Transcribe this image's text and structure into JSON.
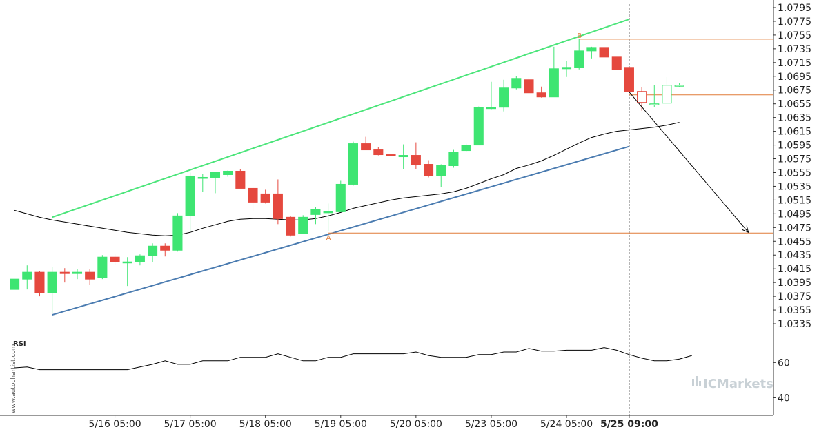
{
  "colors": {
    "up": "#3ee572",
    "down": "#e5483e",
    "upper_channel": "#4be57a",
    "lower_channel": "#4a7bb0",
    "ma": "#000000",
    "level": "#e07b39",
    "arrow": "#000000",
    "axis": "#333333",
    "grid_divider": "#cccccc",
    "brand": "#c9d1d6"
  },
  "chart_data": {
    "type": "candlestick",
    "y_axis": {
      "ticks": [
        "1.0795",
        "1.0775",
        "1.0755",
        "1.0735",
        "1.0715",
        "1.0695",
        "1.0675",
        "1.0655",
        "1.0635",
        "1.0615",
        "1.0595",
        "1.0575",
        "1.0555",
        "1.0535",
        "1.0515",
        "1.0495",
        "1.0475",
        "1.0455",
        "1.0435",
        "1.0415",
        "1.0395",
        "1.0375",
        "1.0355",
        "1.0335"
      ],
      "range": [
        1.0322,
        1.08
      ]
    },
    "x_axis": {
      "labels": [
        {
          "i": 8,
          "label": "5/16 05:00",
          "bold": false
        },
        {
          "i": 14,
          "label": "5/17 05:00",
          "bold": false
        },
        {
          "i": 20,
          "label": "5/18 05:00",
          "bold": false
        },
        {
          "i": 26,
          "label": "5/19 05:00",
          "bold": false
        },
        {
          "i": 32,
          "label": "5/20 05:00",
          "bold": false
        },
        {
          "i": 38,
          "label": "5/23 05:00",
          "bold": false
        },
        {
          "i": 44,
          "label": "5/24 05:00",
          "bold": false
        },
        {
          "i": 49,
          "label": "5/25 09:00",
          "bold": true
        }
      ],
      "range": [
        -0.5,
        60.5
      ]
    },
    "candles": [
      {
        "o": 1.0385,
        "h": 1.04,
        "l": 1.0385,
        "c": 1.04
      },
      {
        "o": 1.04,
        "h": 1.042,
        "l": 1.0385,
        "c": 1.041
      },
      {
        "o": 1.041,
        "h": 1.0412,
        "l": 1.0375,
        "c": 1.038
      },
      {
        "o": 1.038,
        "h": 1.0418,
        "l": 1.035,
        "c": 1.041
      },
      {
        "o": 1.041,
        "h": 1.0416,
        "l": 1.0395,
        "c": 1.0408
      },
      {
        "o": 1.0408,
        "h": 1.0415,
        "l": 1.04,
        "c": 1.041
      },
      {
        "o": 1.041,
        "h": 1.0415,
        "l": 1.0392,
        "c": 1.04
      },
      {
        "o": 1.0402,
        "h": 1.0435,
        "l": 1.04,
        "c": 1.0432
      },
      {
        "o": 1.0432,
        "h": 1.0436,
        "l": 1.042,
        "c": 1.0425
      },
      {
        "o": 1.0425,
        "h": 1.0432,
        "l": 1.039,
        "c": 1.0425
      },
      {
        "o": 1.0425,
        "h": 1.0436,
        "l": 1.042,
        "c": 1.0434
      },
      {
        "o": 1.0434,
        "h": 1.0452,
        "l": 1.0425,
        "c": 1.0448
      },
      {
        "o": 1.0448,
        "h": 1.0452,
        "l": 1.0433,
        "c": 1.0442
      },
      {
        "o": 1.0442,
        "h": 1.0496,
        "l": 1.044,
        "c": 1.0492
      },
      {
        "o": 1.0492,
        "h": 1.0555,
        "l": 1.047,
        "c": 1.055
      },
      {
        "o": 1.0548,
        "h": 1.0553,
        "l": 1.0527,
        "c": 1.0548
      },
      {
        "o": 1.0548,
        "h": 1.0556,
        "l": 1.0525,
        "c": 1.0555
      },
      {
        "o": 1.0552,
        "h": 1.0558,
        "l": 1.0549,
        "c": 1.0557
      },
      {
        "o": 1.0557,
        "h": 1.056,
        "l": 1.0532,
        "c": 1.0532
      },
      {
        "o": 1.0532,
        "h": 1.0535,
        "l": 1.0498,
        "c": 1.0512
      },
      {
        "o": 1.0524,
        "h": 1.053,
        "l": 1.051,
        "c": 1.0512
      },
      {
        "o": 1.0524,
        "h": 1.0545,
        "l": 1.048,
        "c": 1.0488
      },
      {
        "o": 1.049,
        "h": 1.0492,
        "l": 1.0462,
        "c": 1.0464
      },
      {
        "o": 1.0466,
        "h": 1.0493,
        "l": 1.0466,
        "c": 1.049
      },
      {
        "o": 1.0494,
        "h": 1.0505,
        "l": 1.048,
        "c": 1.0501
      },
      {
        "o": 1.0498,
        "h": 1.051,
        "l": 1.047,
        "c": 1.0498
      },
      {
        "o": 1.0498,
        "h": 1.0543,
        "l": 1.0498,
        "c": 1.0538
      },
      {
        "o": 1.0538,
        "h": 1.06,
        "l": 1.0536,
        "c": 1.0597
      },
      {
        "o": 1.0597,
        "h": 1.0607,
        "l": 1.0588,
        "c": 1.0588
      },
      {
        "o": 1.0588,
        "h": 1.0592,
        "l": 1.058,
        "c": 1.0581
      },
      {
        "o": 1.0581,
        "h": 1.0583,
        "l": 1.0556,
        "c": 1.058
      },
      {
        "o": 1.0578,
        "h": 1.0596,
        "l": 1.056,
        "c": 1.058
      },
      {
        "o": 1.058,
        "h": 1.0599,
        "l": 1.056,
        "c": 1.0567
      },
      {
        "o": 1.0567,
        "h": 1.0573,
        "l": 1.0548,
        "c": 1.055
      },
      {
        "o": 1.055,
        "h": 1.0567,
        "l": 1.0534,
        "c": 1.0565
      },
      {
        "o": 1.0565,
        "h": 1.0588,
        "l": 1.0562,
        "c": 1.0585
      },
      {
        "o": 1.0587,
        "h": 1.0597,
        "l": 1.0585,
        "c": 1.0595
      },
      {
        "o": 1.0595,
        "h": 1.0651,
        "l": 1.0595,
        "c": 1.065
      },
      {
        "o": 1.0648,
        "h": 1.0687,
        "l": 1.0647,
        "c": 1.065
      },
      {
        "o": 1.065,
        "h": 1.069,
        "l": 1.0644,
        "c": 1.0678
      },
      {
        "o": 1.0678,
        "h": 1.0695,
        "l": 1.0676,
        "c": 1.0692
      },
      {
        "o": 1.069,
        "h": 1.0694,
        "l": 1.067,
        "c": 1.0671
      },
      {
        "o": 1.0671,
        "h": 1.068,
        "l": 1.0664,
        "c": 1.0665
      },
      {
        "o": 1.0665,
        "h": 1.0738,
        "l": 1.0665,
        "c": 1.0706
      },
      {
        "o": 1.0706,
        "h": 1.0717,
        "l": 1.0694,
        "c": 1.0708
      },
      {
        "o": 1.0708,
        "h": 1.0749,
        "l": 1.0705,
        "c": 1.0732
      },
      {
        "o": 1.0732,
        "h": 1.0738,
        "l": 1.0721,
        "c": 1.0737
      },
      {
        "o": 1.0737,
        "h": 1.0737,
        "l": 1.0723,
        "c": 1.0723
      },
      {
        "o": 1.0723,
        "h": 1.0723,
        "l": 1.0705,
        "c": 1.0705
      },
      {
        "o": 1.0708,
        "h": 1.0708,
        "l": 1.0672,
        "c": 1.0673
      },
      {
        "o": 1.0673,
        "h": 1.0679,
        "l": 1.0645,
        "c": 1.0657
      },
      {
        "o": 1.0654,
        "h": 1.0682,
        "l": 1.065,
        "c": 1.0655
      },
      {
        "o": 1.0656,
        "h": 1.0694,
        "l": 1.0655,
        "c": 1.0682
      },
      {
        "o": 1.0682,
        "h": 1.0685,
        "l": 1.0679,
        "c": 1.0682
      }
    ],
    "hollow_from": 50,
    "moving_average": [
      [
        0,
        1.05
      ],
      [
        1,
        1.0495
      ],
      [
        2,
        1.049
      ],
      [
        3,
        1.0486
      ],
      [
        4,
        1.0483
      ],
      [
        5,
        1.048
      ],
      [
        6,
        1.0477
      ],
      [
        7,
        1.0474
      ],
      [
        8,
        1.0471
      ],
      [
        9,
        1.0468
      ],
      [
        10,
        1.0466
      ],
      [
        11,
        1.0464
      ],
      [
        12,
        1.0463
      ],
      [
        13,
        1.0464
      ],
      [
        14,
        1.0468
      ],
      [
        15,
        1.0474
      ],
      [
        16,
        1.0479
      ],
      [
        17,
        1.0484
      ],
      [
        18,
        1.0487
      ],
      [
        19,
        1.0488
      ],
      [
        20,
        1.0488
      ],
      [
        21,
        1.0487
      ],
      [
        22,
        1.0486
      ],
      [
        23,
        1.0486
      ],
      [
        24,
        1.0488
      ],
      [
        25,
        1.0492
      ],
      [
        26,
        1.0497
      ],
      [
        27,
        1.0503
      ],
      [
        28,
        1.0507
      ],
      [
        29,
        1.0511
      ],
      [
        30,
        1.0515
      ],
      [
        31,
        1.0518
      ],
      [
        32,
        1.052
      ],
      [
        33,
        1.0522
      ],
      [
        34,
        1.0524
      ],
      [
        35,
        1.0527
      ],
      [
        36,
        1.0532
      ],
      [
        37,
        1.0539
      ],
      [
        38,
        1.0546
      ],
      [
        39,
        1.0552
      ],
      [
        40,
        1.0561
      ],
      [
        41,
        1.0566
      ],
      [
        42,
        1.0572
      ],
      [
        43,
        1.058
      ],
      [
        44,
        1.0589
      ],
      [
        45,
        1.0598
      ],
      [
        46,
        1.0606
      ],
      [
        47,
        1.0611
      ],
      [
        48,
        1.0615
      ],
      [
        49,
        1.0617
      ],
      [
        50,
        1.0619
      ],
      [
        51,
        1.0621
      ],
      [
        52,
        1.0624
      ],
      [
        53,
        1.0628
      ]
    ],
    "upper_channel_line": [
      [
        3,
        1.049
      ],
      [
        49,
        1.0778
      ]
    ],
    "lower_channel_line": [
      [
        3,
        1.0348
      ],
      [
        49,
        1.0593
      ]
    ],
    "levels": [
      {
        "label": "B",
        "y": 1.0749,
        "x_start": 45
      },
      {
        "label": "",
        "y": 1.0668,
        "x_start": 49
      },
      {
        "label": "A",
        "y": 1.0467,
        "x_start": 25
      }
    ],
    "forecast_arrow": {
      "from": [
        49,
        1.0672
      ],
      "to": [
        58.5,
        1.0468
      ]
    },
    "current_time_index": 49,
    "rsi": {
      "title": "RSI",
      "ticks": [
        "60",
        "40"
      ],
      "range": [
        30,
        75
      ],
      "values": [
        [
          0,
          57
        ],
        [
          1,
          57.5
        ],
        [
          2,
          56
        ],
        [
          3,
          56
        ],
        [
          4,
          56
        ],
        [
          5,
          56
        ],
        [
          6,
          56
        ],
        [
          7,
          56
        ],
        [
          8,
          56
        ],
        [
          9,
          56
        ],
        [
          10,
          57.5
        ],
        [
          11,
          59
        ],
        [
          12,
          61
        ],
        [
          13,
          59
        ],
        [
          14,
          59
        ],
        [
          15,
          61
        ],
        [
          16,
          61
        ],
        [
          17,
          61
        ],
        [
          18,
          63
        ],
        [
          19,
          63
        ],
        [
          20,
          63
        ],
        [
          21,
          65
        ],
        [
          22,
          63
        ],
        [
          23,
          61
        ],
        [
          24,
          61
        ],
        [
          25,
          63
        ],
        [
          26,
          63
        ],
        [
          27,
          65
        ],
        [
          28,
          65
        ],
        [
          29,
          65
        ],
        [
          30,
          65
        ],
        [
          31,
          65
        ],
        [
          32,
          66
        ],
        [
          33,
          64
        ],
        [
          34,
          63
        ],
        [
          35,
          63
        ],
        [
          36,
          63
        ],
        [
          37,
          64.5
        ],
        [
          38,
          64.5
        ],
        [
          39,
          66
        ],
        [
          40,
          66
        ],
        [
          41,
          68
        ],
        [
          42,
          66.5
        ],
        [
          43,
          66.5
        ],
        [
          44,
          67
        ],
        [
          45,
          67
        ],
        [
          46,
          67
        ],
        [
          47,
          68.5
        ],
        [
          48,
          67
        ],
        [
          49,
          64.5
        ],
        [
          50,
          62.5
        ],
        [
          51,
          61
        ],
        [
          52,
          61
        ],
        [
          53,
          62
        ],
        [
          54,
          64
        ]
      ]
    }
  },
  "watermark": "www.autochartist.com",
  "brand": {
    "name": "ICMarkets"
  }
}
